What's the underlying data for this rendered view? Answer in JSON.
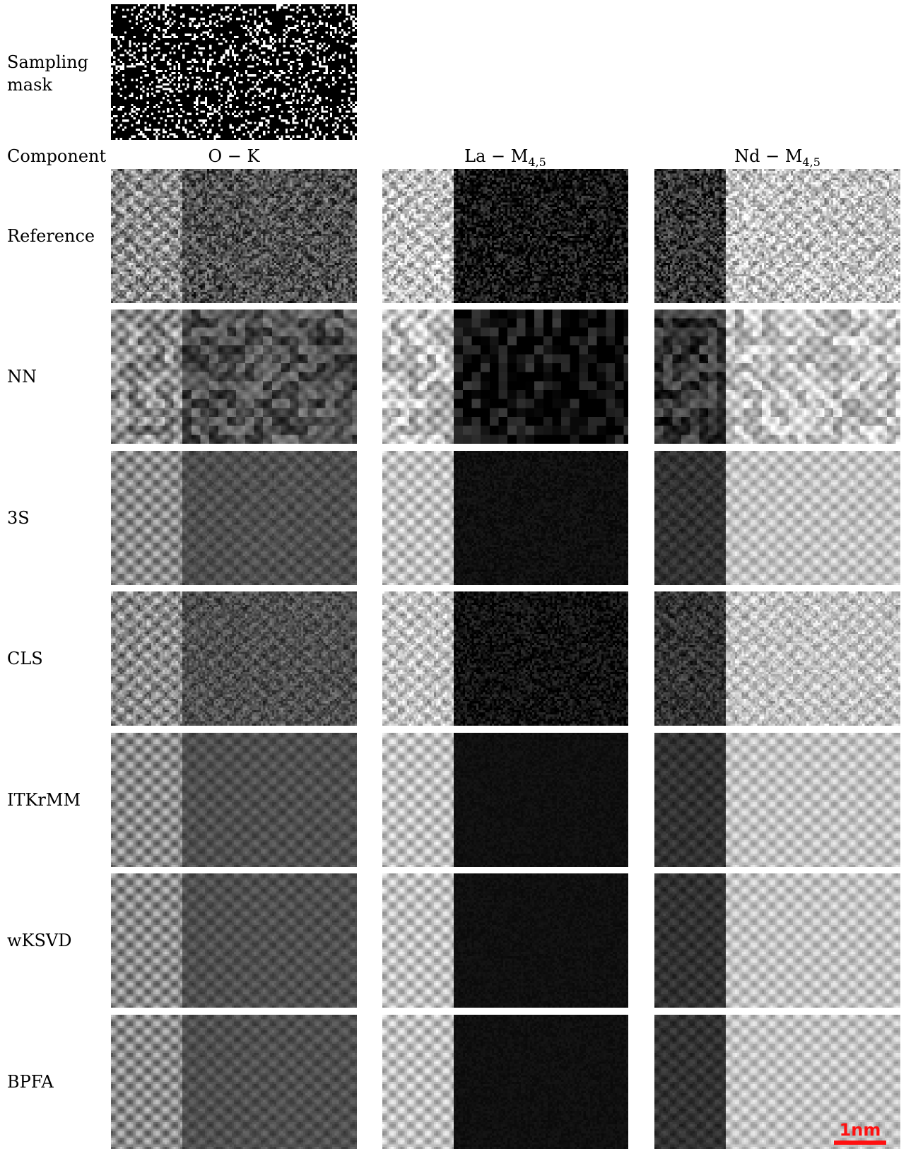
{
  "rows": [
    {
      "label": "Reference",
      "style": "noisy"
    },
    {
      "label": "NN",
      "style": "patchy"
    },
    {
      "label": "3S",
      "style": "smooth"
    },
    {
      "label": "CLS",
      "style": "noisy-lattice"
    },
    {
      "label": "ITKrMM",
      "style": "clean"
    },
    {
      "label": "wKSVD",
      "style": "clean"
    },
    {
      "label": "BPFA",
      "style": "clean"
    }
  ],
  "mask_label_line1": "Sampling",
  "mask_label_line2": "mask",
  "component_label": "Component",
  "columns": [
    {
      "name": "O − K",
      "sub": ""
    },
    {
      "name": "La − M",
      "sub": "4,5"
    },
    {
      "name": "Nd − M",
      "sub": "4,5"
    }
  ],
  "scalebar_text": "1nm",
  "colors": {
    "scalebar": "#ff1010",
    "background": "#ffffff"
  }
}
